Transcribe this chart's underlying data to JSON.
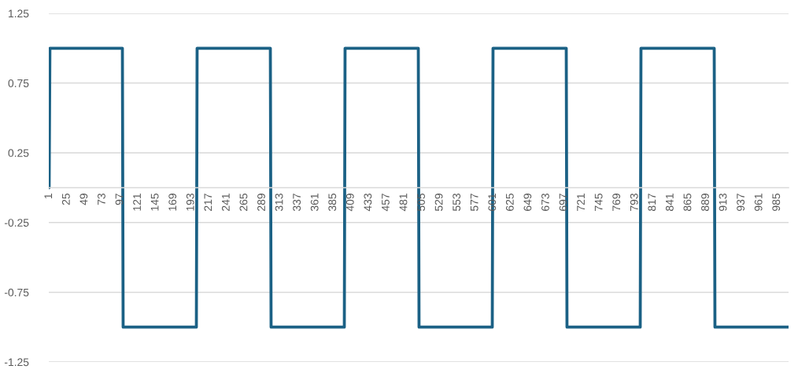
{
  "chart_data": {
    "type": "line",
    "x": [
      1,
      2,
      100,
      101,
      200,
      201,
      300,
      301,
      400,
      401,
      500,
      501,
      600,
      601,
      700,
      701,
      800,
      801,
      900,
      901,
      1000
    ],
    "values": [
      0,
      1,
      1,
      -1,
      -1,
      1,
      1,
      -1,
      -1,
      1,
      1,
      -1,
      -1,
      1,
      1,
      -1,
      -1,
      1,
      1,
      -1,
      -1
    ],
    "color": "#1b6185",
    "xlim": [
      0.5,
      1000.5
    ],
    "xticks": [
      1,
      25,
      49,
      73,
      97,
      121,
      145,
      169,
      193,
      217,
      241,
      265,
      289,
      313,
      337,
      361,
      385,
      409,
      433,
      457,
      481,
      505,
      529,
      553,
      577,
      601,
      625,
      649,
      673,
      697,
      721,
      745,
      769,
      793,
      817,
      841,
      865,
      889,
      913,
      937,
      961,
      985
    ],
    "ylim": [
      -1.25,
      1.25
    ],
    "yticks": [
      -1.25,
      -0.75,
      -0.25,
      0.25,
      0.75,
      1.25
    ],
    "grid": "y",
    "marker": "none",
    "line_style": "solid"
  }
}
